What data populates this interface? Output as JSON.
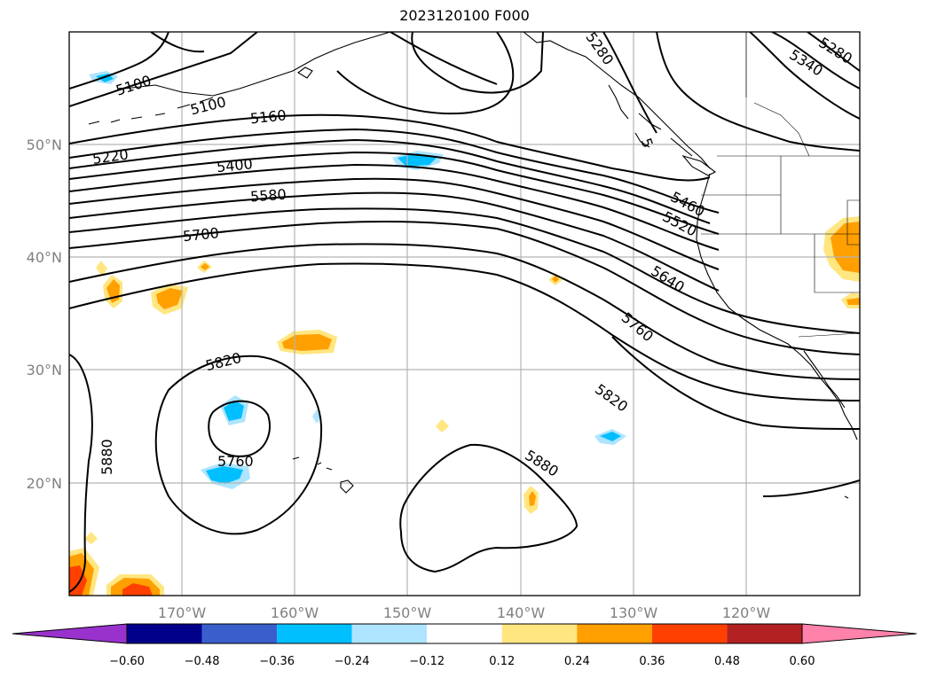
{
  "title": "2023120100 F000",
  "map": {
    "lat_labels": [
      "50°N",
      "40°N",
      "30°N",
      "20°N"
    ],
    "lon_labels": [
      "170°W",
      "160°W",
      "150°W",
      "140°W",
      "130°W",
      "120°W"
    ],
    "gridlines": true,
    "contour_variable": "500 hPa geopotential height (gpm)",
    "contour_labels": [
      "5100",
      "5100",
      "5160",
      "5220",
      "5400",
      "5580",
      "5700",
      "5280",
      "5340",
      "5280",
      "5460",
      "5520",
      "5640",
      "5760",
      "5820",
      "5760",
      "5820",
      "5880",
      "5880",
      "5"
    ],
    "fill_colors": {
      "orange": "#ff9f00",
      "light_yellow": "#ffe680",
      "dark_orange": "#ff4000",
      "cyan": "#00bfff",
      "light_blue": "#aee4ff"
    }
  },
  "colorbar": {
    "tick_labels": [
      "−0.60",
      "−0.48",
      "−0.36",
      "−0.24",
      "−0.12",
      "0.12",
      "0.24",
      "0.36",
      "0.48",
      "0.60"
    ],
    "colors": [
      "#9932cc",
      "#00008b",
      "#3a5fcd",
      "#00bfff",
      "#aee4ff",
      "#ffffff",
      "#ffe680",
      "#ff9f00",
      "#ff4000",
      "#b22222",
      "#ff82ab"
    ]
  }
}
